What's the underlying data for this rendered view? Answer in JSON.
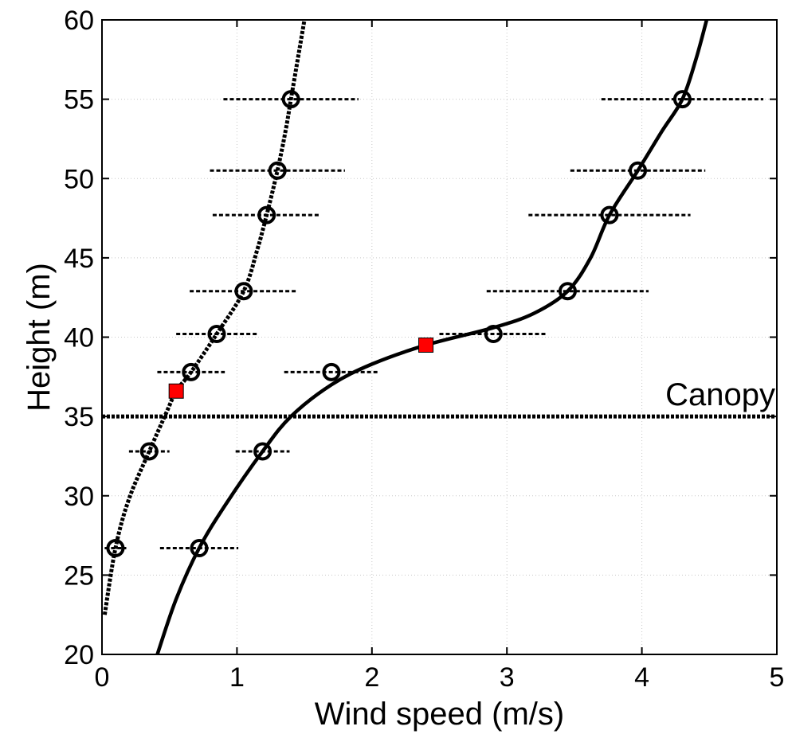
{
  "chart_data": {
    "type": "line",
    "title": "",
    "xlabel": "Wind speed (m/s)",
    "ylabel": "Height (m)",
    "xlim": [
      0,
      5
    ],
    "ylim": [
      20,
      60
    ],
    "xticks": [
      0,
      1,
      2,
      3,
      4,
      5
    ],
    "yticks": [
      20,
      25,
      30,
      35,
      40,
      45,
      50,
      55,
      60
    ],
    "xtick_labels": [
      "0",
      "1",
      "2",
      "3",
      "4",
      "5"
    ],
    "ytick_labels": [
      "20",
      "25",
      "30",
      "35",
      "40",
      "45",
      "50",
      "55",
      "60"
    ],
    "grid": true,
    "canopy": {
      "label": "Canopy",
      "height": 35
    },
    "series": [
      {
        "line_style": "dotted",
        "color": "#000000",
        "points": [
          {
            "x": 0.1,
            "y": 26.7,
            "err": 0.08
          },
          {
            "x": 0.35,
            "y": 32.8,
            "err": 0.15
          },
          {
            "x": 0.66,
            "y": 37.8,
            "err": 0.25
          },
          {
            "x": 0.85,
            "y": 40.2,
            "err": 0.3
          },
          {
            "x": 1.05,
            "y": 42.9,
            "err": 0.4
          },
          {
            "x": 1.22,
            "y": 47.7,
            "err": 0.4
          },
          {
            "x": 1.3,
            "y": 50.5,
            "err": 0.5
          },
          {
            "x": 1.4,
            "y": 55.0,
            "err": 0.5
          }
        ],
        "fit_curve": [
          {
            "x": 0.02,
            "y": 22.5
          },
          {
            "x": 0.1,
            "y": 26.7
          },
          {
            "x": 0.2,
            "y": 29.8
          },
          {
            "x": 0.35,
            "y": 32.8
          },
          {
            "x": 0.48,
            "y": 35.3
          },
          {
            "x": 0.55,
            "y": 36.6
          },
          {
            "x": 0.66,
            "y": 37.8
          },
          {
            "x": 0.85,
            "y": 40.2
          },
          {
            "x": 1.05,
            "y": 42.9
          },
          {
            "x": 1.15,
            "y": 45.5
          },
          {
            "x": 1.22,
            "y": 47.7
          },
          {
            "x": 1.3,
            "y": 50.5
          },
          {
            "x": 1.36,
            "y": 53.0
          },
          {
            "x": 1.4,
            "y": 55.0
          },
          {
            "x": 1.46,
            "y": 58.0
          },
          {
            "x": 1.5,
            "y": 60.0
          }
        ],
        "inflection_marker": {
          "x": 0.55,
          "y": 36.6,
          "color": "#ff0000"
        }
      },
      {
        "line_style": "solid",
        "color": "#000000",
        "points": [
          {
            "x": 0.72,
            "y": 26.7,
            "err": 0.29
          },
          {
            "x": 1.19,
            "y": 32.8,
            "err": 0.2
          },
          {
            "x": 1.7,
            "y": 37.8,
            "err": 0.35
          },
          {
            "x": 2.9,
            "y": 40.2,
            "err": 0.4
          },
          {
            "x": 3.45,
            "y": 42.9,
            "err": 0.6
          },
          {
            "x": 3.76,
            "y": 47.7,
            "err": 0.6
          },
          {
            "x": 3.97,
            "y": 50.5,
            "err": 0.5
          },
          {
            "x": 4.3,
            "y": 55.0,
            "err": 0.6
          }
        ],
        "fit_curve": [
          {
            "x": 0.41,
            "y": 20.0
          },
          {
            "x": 0.55,
            "y": 23.5
          },
          {
            "x": 0.72,
            "y": 26.7
          },
          {
            "x": 0.92,
            "y": 29.5
          },
          {
            "x": 1.19,
            "y": 32.8
          },
          {
            "x": 1.4,
            "y": 35.0
          },
          {
            "x": 1.7,
            "y": 37.0
          },
          {
            "x": 2.0,
            "y": 38.3
          },
          {
            "x": 2.4,
            "y": 39.5
          },
          {
            "x": 2.9,
            "y": 40.6
          },
          {
            "x": 3.2,
            "y": 41.5
          },
          {
            "x": 3.45,
            "y": 42.9
          },
          {
            "x": 3.62,
            "y": 45.0
          },
          {
            "x": 3.76,
            "y": 47.7
          },
          {
            "x": 3.97,
            "y": 50.5
          },
          {
            "x": 4.15,
            "y": 53.0
          },
          {
            "x": 4.3,
            "y": 55.0
          },
          {
            "x": 4.4,
            "y": 57.5
          },
          {
            "x": 4.48,
            "y": 60.0
          }
        ],
        "inflection_marker": {
          "x": 2.4,
          "y": 39.5,
          "color": "#ff0000"
        }
      }
    ]
  }
}
